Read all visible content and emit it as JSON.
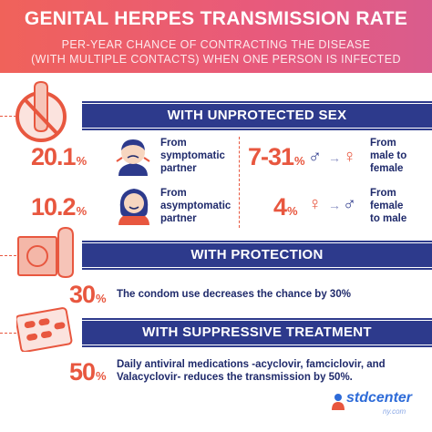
{
  "header": {
    "title": "GENITAL HERPES TRANSMISSION RATE",
    "subtitle_line1": "PER-YEAR CHANCE OF CONTRACTING THE DISEASE",
    "subtitle_line2": "(WITH MULTIPLE CONTACTS) WHEN ONE PERSON IS INFECTED"
  },
  "unprotected": {
    "heading": "WITH UNPROTECTED SEX",
    "items": [
      {
        "value": "20.1",
        "pct": "%",
        "line1": "From",
        "line2": "symptomatic",
        "line3": "partner"
      },
      {
        "value": "10.2",
        "pct": "%",
        "line1": "From",
        "line2": "asymptomatic",
        "line3": "partner"
      },
      {
        "value": "7-31",
        "pct": "%",
        "line1": "From",
        "line2": "male to female",
        "line3": ""
      },
      {
        "value": "4",
        "pct": "%",
        "line1": "From",
        "line2": "female to male",
        "line3": ""
      }
    ]
  },
  "protection": {
    "heading": "WITH PROTECTION",
    "value": "30",
    "pct": "%",
    "text": "The condom use decreases the chance by 30%"
  },
  "suppressive": {
    "heading": "WITH SUPPRESSIVE TREATMENT",
    "value": "50",
    "pct": "%",
    "line1": "Daily antiviral medications -acyclovir, famciclovir, and",
    "line2": "Valacyclovir- reduces the transmission by 50%."
  },
  "symbols": {
    "male": "♂",
    "female": "♀",
    "arrow": "→"
  },
  "logo": {
    "name": "stdcenter",
    "domain": "ny.com"
  },
  "colors": {
    "accent": "#e8573f",
    "navy": "#2d3a8c",
    "header_start": "#f0625a",
    "header_end": "#d95c8d"
  },
  "icons": [
    "no-condom-icon",
    "sick-person-icon",
    "healthy-person-icon",
    "condom-packet-icon",
    "pill-blister-icon",
    "logo-icon"
  ]
}
